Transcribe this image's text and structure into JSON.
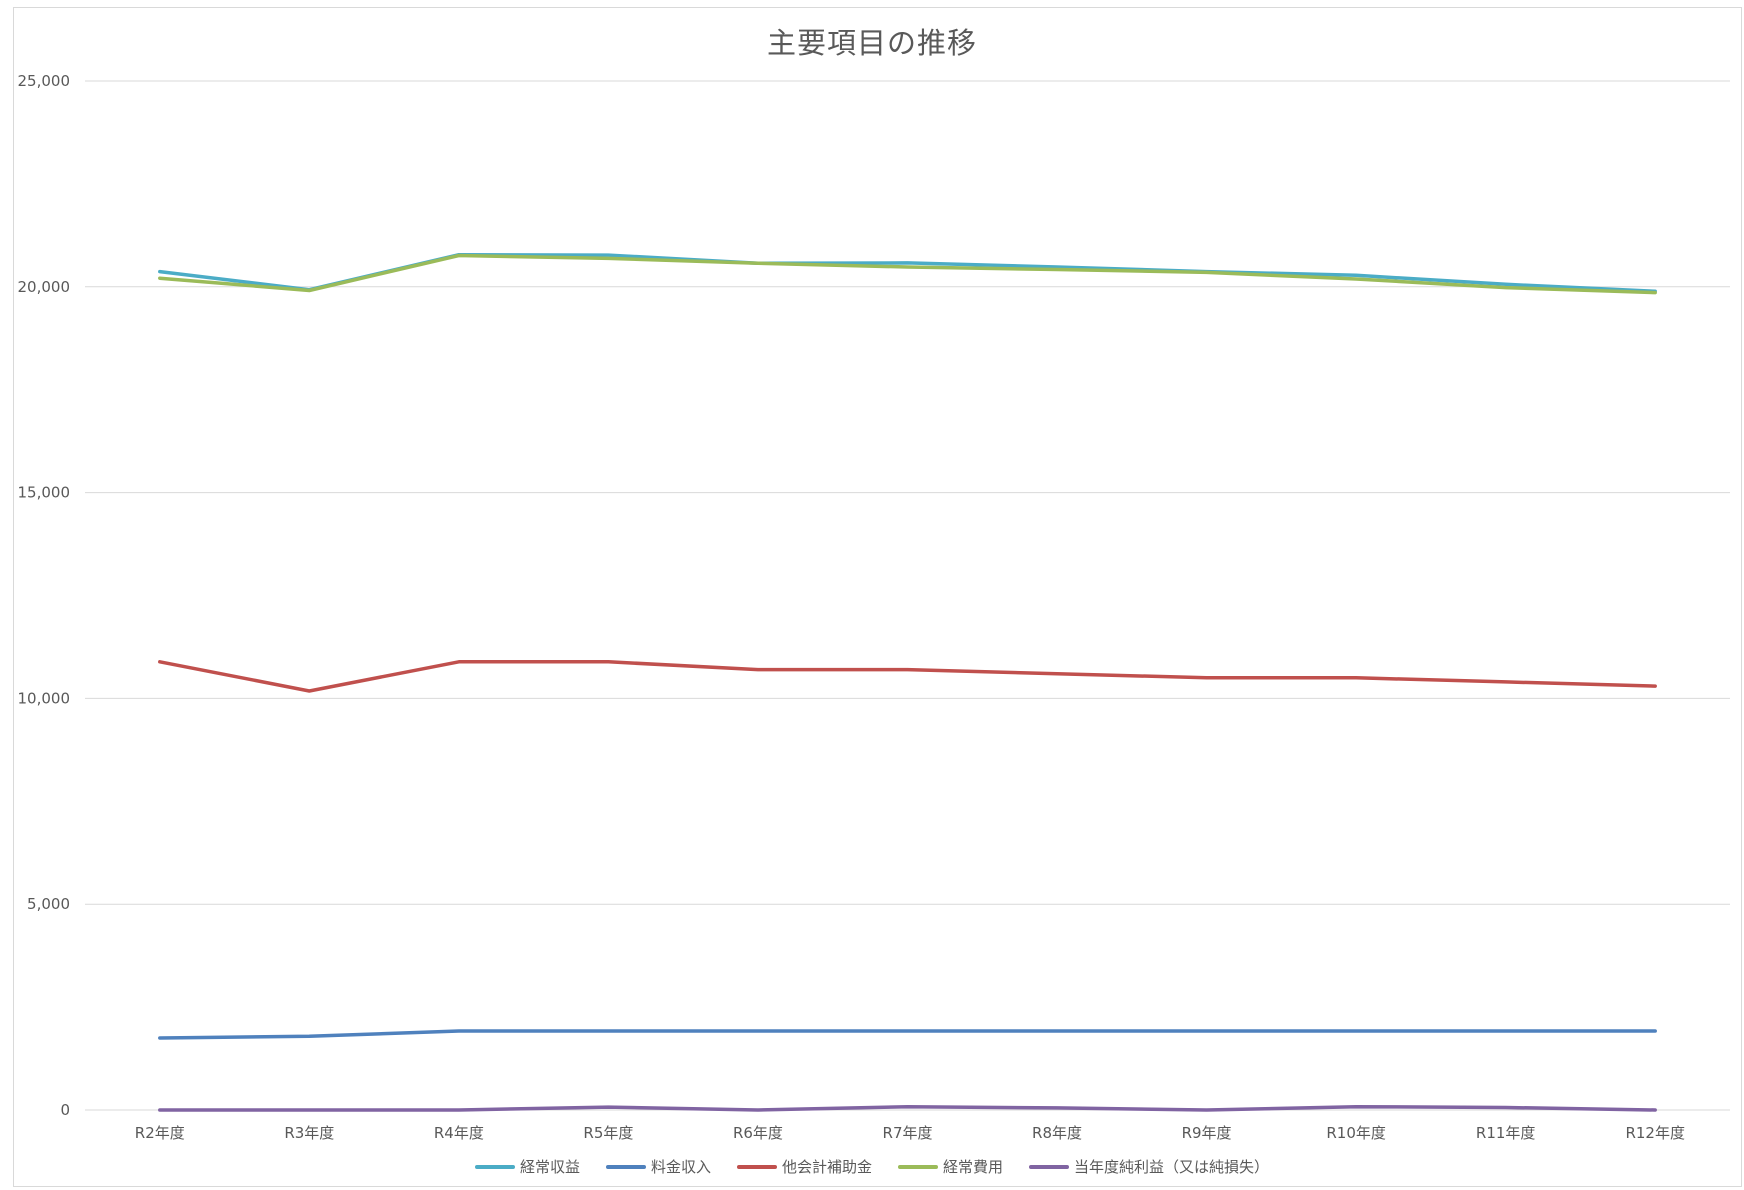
{
  "chart_data": {
    "type": "line",
    "title": "主要項目の推移",
    "xlabel": "",
    "ylabel": "",
    "categories": [
      "R2年度",
      "R3年度",
      "R4年度",
      "R5年度",
      "R6年度",
      "R7年度",
      "R8年度",
      "R9年度",
      "R10年度",
      "R11年度",
      "R12年度"
    ],
    "ylim": [
      0,
      25000
    ],
    "yticks": [
      0,
      5000,
      10000,
      15000,
      20000,
      25000
    ],
    "ytick_labels": [
      "0",
      "5,000",
      "10,000",
      "15,000",
      "20,000",
      "25,000"
    ],
    "grid": true,
    "legend_position": "bottom",
    "series": [
      {
        "name": "経常収益",
        "color": "#4bacc6",
        "values": [
          20370,
          19930,
          20780,
          20770,
          20570,
          20580,
          20480,
          20370,
          20280,
          20060,
          19890
        ]
      },
      {
        "name": "料金収入",
        "color": "#4f81bd",
        "values": [
          1750,
          1790,
          1920,
          1920,
          1920,
          1920,
          1920,
          1920,
          1920,
          1920,
          1920
        ]
      },
      {
        "name": "他会計補助金",
        "color": "#c0504d",
        "values": [
          10890,
          10180,
          10890,
          10890,
          10700,
          10700,
          10600,
          10500,
          10500,
          10400,
          10300
        ]
      },
      {
        "name": "経常費用",
        "color": "#9bbb59",
        "values": [
          20210,
          19910,
          20760,
          20690,
          20570,
          20480,
          20420,
          20350,
          20190,
          19980,
          19860
        ]
      },
      {
        "name": "当年度純利益（又は純損失）",
        "color": "#8064a2",
        "values": [
          0,
          0,
          0,
          70,
          0,
          80,
          50,
          0,
          80,
          60,
          0
        ]
      }
    ]
  }
}
